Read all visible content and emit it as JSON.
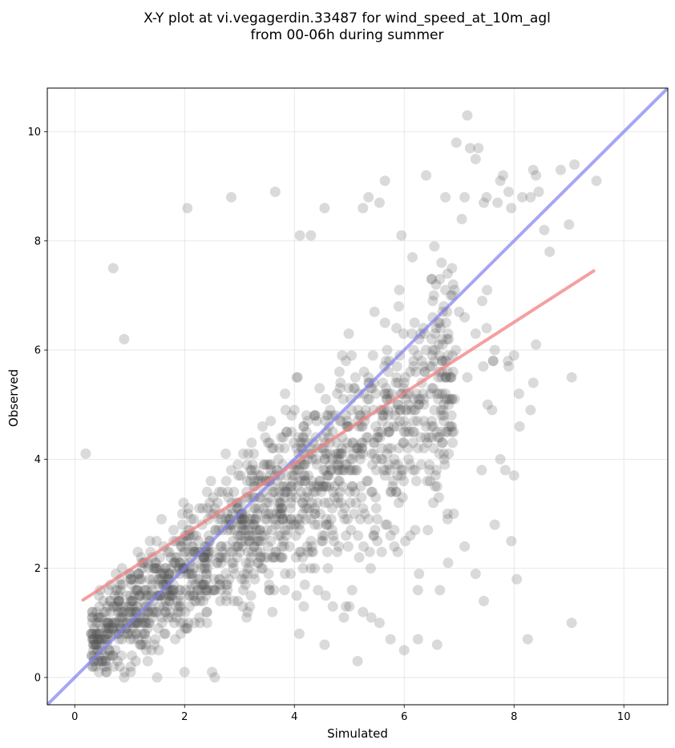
{
  "chart_data": {
    "type": "scatter",
    "title_lines": [
      "X-Y plot at vi.vegagerdin.33487 for wind_speed_at_10m_agl",
      "from 00-06h during summer"
    ],
    "xlabel": "Simulated",
    "ylabel": "Observed",
    "xlim": [
      -0.5,
      10.8
    ],
    "ylim": [
      -0.5,
      10.8
    ],
    "xticks": [
      0,
      2,
      4,
      6,
      8,
      10
    ],
    "yticks": [
      0,
      2,
      4,
      6,
      8,
      10
    ],
    "grid": true,
    "point_color": "#555555",
    "point_alpha": 0.22,
    "point_count": 1500,
    "points": [
      [
        0.2,
        4.1
      ],
      [
        0.7,
        7.5
      ],
      [
        0.9,
        6.2
      ],
      [
        2.05,
        8.6
      ],
      [
        2.85,
        8.8
      ],
      [
        3.65,
        8.9
      ],
      [
        4.1,
        8.1
      ],
      [
        4.3,
        8.1
      ],
      [
        4.55,
        8.6
      ],
      [
        5.25,
        8.6
      ],
      [
        5.35,
        8.8
      ],
      [
        5.55,
        8.7
      ],
      [
        5.65,
        9.1
      ],
      [
        5.95,
        8.1
      ],
      [
        6.15,
        7.7
      ],
      [
        6.4,
        9.2
      ],
      [
        6.55,
        7.9
      ],
      [
        6.75,
        8.8
      ],
      [
        6.95,
        9.8
      ],
      [
        7.05,
        8.4
      ],
      [
        7.1,
        8.8
      ],
      [
        7.15,
        10.3
      ],
      [
        7.2,
        9.7
      ],
      [
        7.3,
        9.5
      ],
      [
        7.35,
        9.7
      ],
      [
        7.45,
        8.7
      ],
      [
        7.5,
        8.8
      ],
      [
        7.7,
        8.7
      ],
      [
        7.75,
        9.1
      ],
      [
        7.8,
        9.2
      ],
      [
        7.9,
        8.9
      ],
      [
        7.95,
        8.6
      ],
      [
        8.15,
        8.8
      ],
      [
        8.3,
        8.8
      ],
      [
        8.35,
        9.3
      ],
      [
        8.4,
        9.2
      ],
      [
        8.45,
        8.9
      ],
      [
        8.55,
        8.2
      ],
      [
        8.65,
        7.8
      ],
      [
        8.85,
        9.3
      ],
      [
        9.0,
        8.3
      ],
      [
        9.1,
        9.4
      ],
      [
        9.5,
        9.1
      ],
      [
        9.05,
        5.5
      ],
      [
        9.05,
        1.0
      ],
      [
        8.3,
        4.9
      ],
      [
        8.1,
        4.6
      ],
      [
        8.05,
        1.8
      ],
      [
        8.25,
        0.7
      ],
      [
        7.95,
        2.5
      ],
      [
        7.75,
        4.0
      ],
      [
        7.65,
        2.8
      ],
      [
        7.6,
        4.9
      ],
      [
        7.45,
        1.4
      ],
      [
        7.3,
        1.9
      ],
      [
        7.1,
        2.4
      ],
      [
        6.9,
        3.0
      ],
      [
        6.8,
        2.1
      ],
      [
        6.65,
        1.6
      ],
      [
        6.6,
        0.6
      ],
      [
        6.25,
        1.6
      ],
      [
        6.25,
        0.7
      ],
      [
        6.0,
        0.5
      ],
      [
        5.75,
        0.7
      ],
      [
        5.15,
        0.3
      ],
      [
        4.55,
        0.6
      ],
      [
        2.0,
        0.1
      ],
      [
        2.5,
        0.1
      ],
      [
        2.55,
        0.0
      ],
      [
        1.5,
        0.0
      ],
      [
        0.9,
        0.0
      ],
      [
        8.4,
        6.1
      ],
      [
        8.0,
        5.9
      ],
      [
        8.35,
        5.4
      ],
      [
        7.9,
        5.7
      ],
      [
        7.5,
        6.4
      ],
      [
        7.65,
        6.0
      ],
      [
        7.3,
        6.3
      ],
      [
        7.0,
        6.7
      ],
      [
        7.1,
        6.6
      ],
      [
        6.85,
        7.0
      ],
      [
        6.8,
        6.3
      ],
      [
        6.65,
        7.3
      ],
      [
        6.5,
        7.3
      ],
      [
        6.4,
        6.0
      ],
      [
        6.35,
        5.7
      ],
      [
        5.4,
        1.1
      ],
      [
        5.55,
        1.0
      ],
      [
        5.25,
        1.2
      ],
      [
        5.0,
        1.3
      ],
      [
        4.9,
        1.1
      ],
      [
        4.7,
        1.3
      ]
    ],
    "regression_line": {
      "x": [
        0.15,
        9.45
      ],
      "y": [
        1.42,
        7.45
      ],
      "color": "#f08080"
    },
    "identity_line": {
      "x": [
        -0.5,
        10.8
      ],
      "y": [
        -0.5,
        10.8
      ],
      "color": "#8080f0"
    }
  }
}
